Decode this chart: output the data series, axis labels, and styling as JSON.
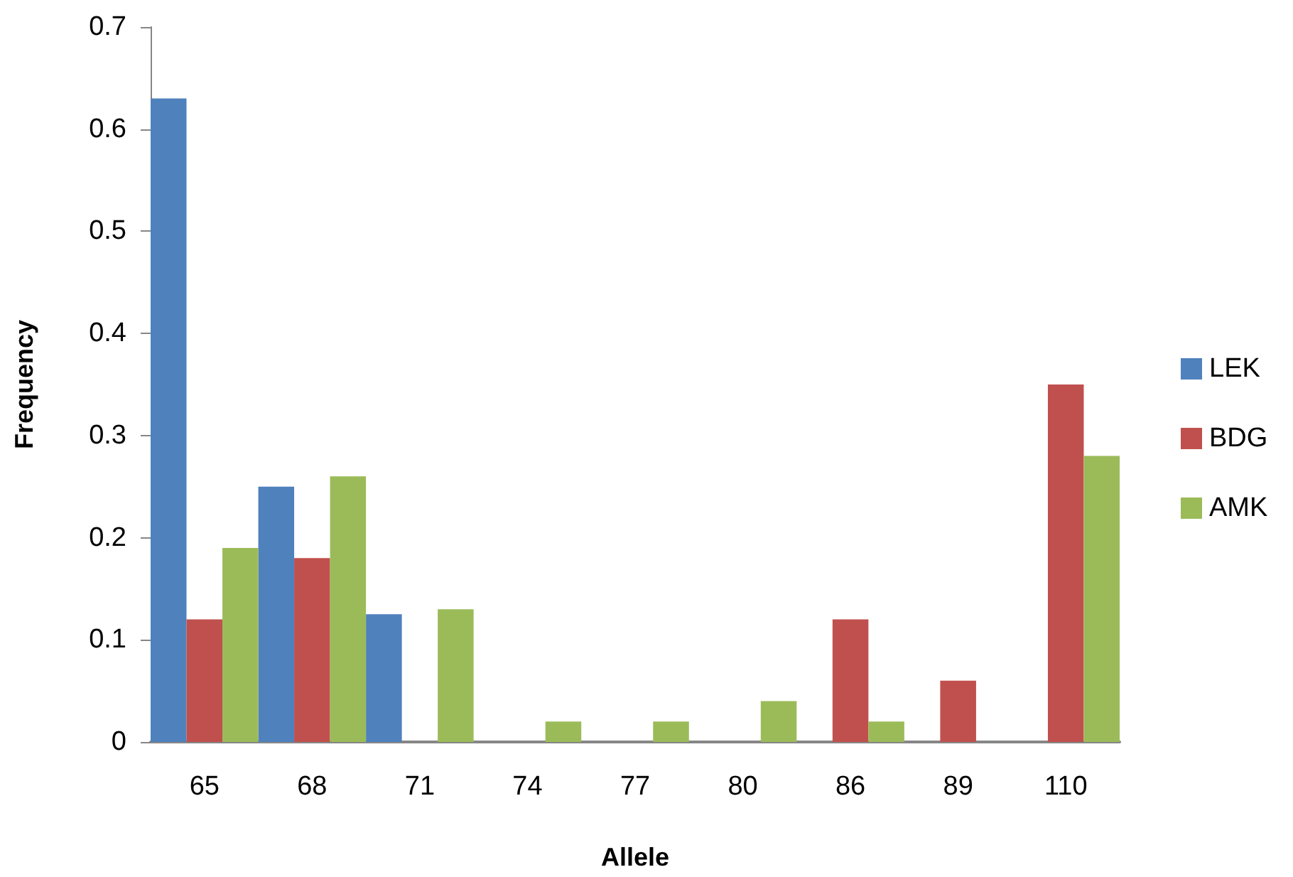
{
  "chart_data": {
    "type": "bar",
    "xlabel": "Allele",
    "ylabel": "Frequency",
    "categories": [
      "65",
      "68",
      "71",
      "74",
      "77",
      "80",
      "86",
      "89",
      "110"
    ],
    "series": [
      {
        "name": "LEK",
        "color": "#4f81bd",
        "values": [
          0.63,
          0.25,
          0.125,
          null,
          null,
          null,
          null,
          null,
          null
        ]
      },
      {
        "name": "BDG",
        "color": "#c0504d",
        "values": [
          0.12,
          0.18,
          null,
          null,
          null,
          null,
          0.12,
          0.06,
          0.35
        ]
      },
      {
        "name": "AMK",
        "color": "#9bbb59",
        "values": [
          0.19,
          0.26,
          0.13,
          0.02,
          0.02,
          0.04,
          0.02,
          null,
          0.28
        ]
      }
    ],
    "ylim": [
      0,
      0.7
    ],
    "yticks": [
      0,
      0.1,
      0.2,
      0.3,
      0.4,
      0.5,
      0.6,
      0.7
    ],
    "grid": false,
    "legend": "right"
  }
}
